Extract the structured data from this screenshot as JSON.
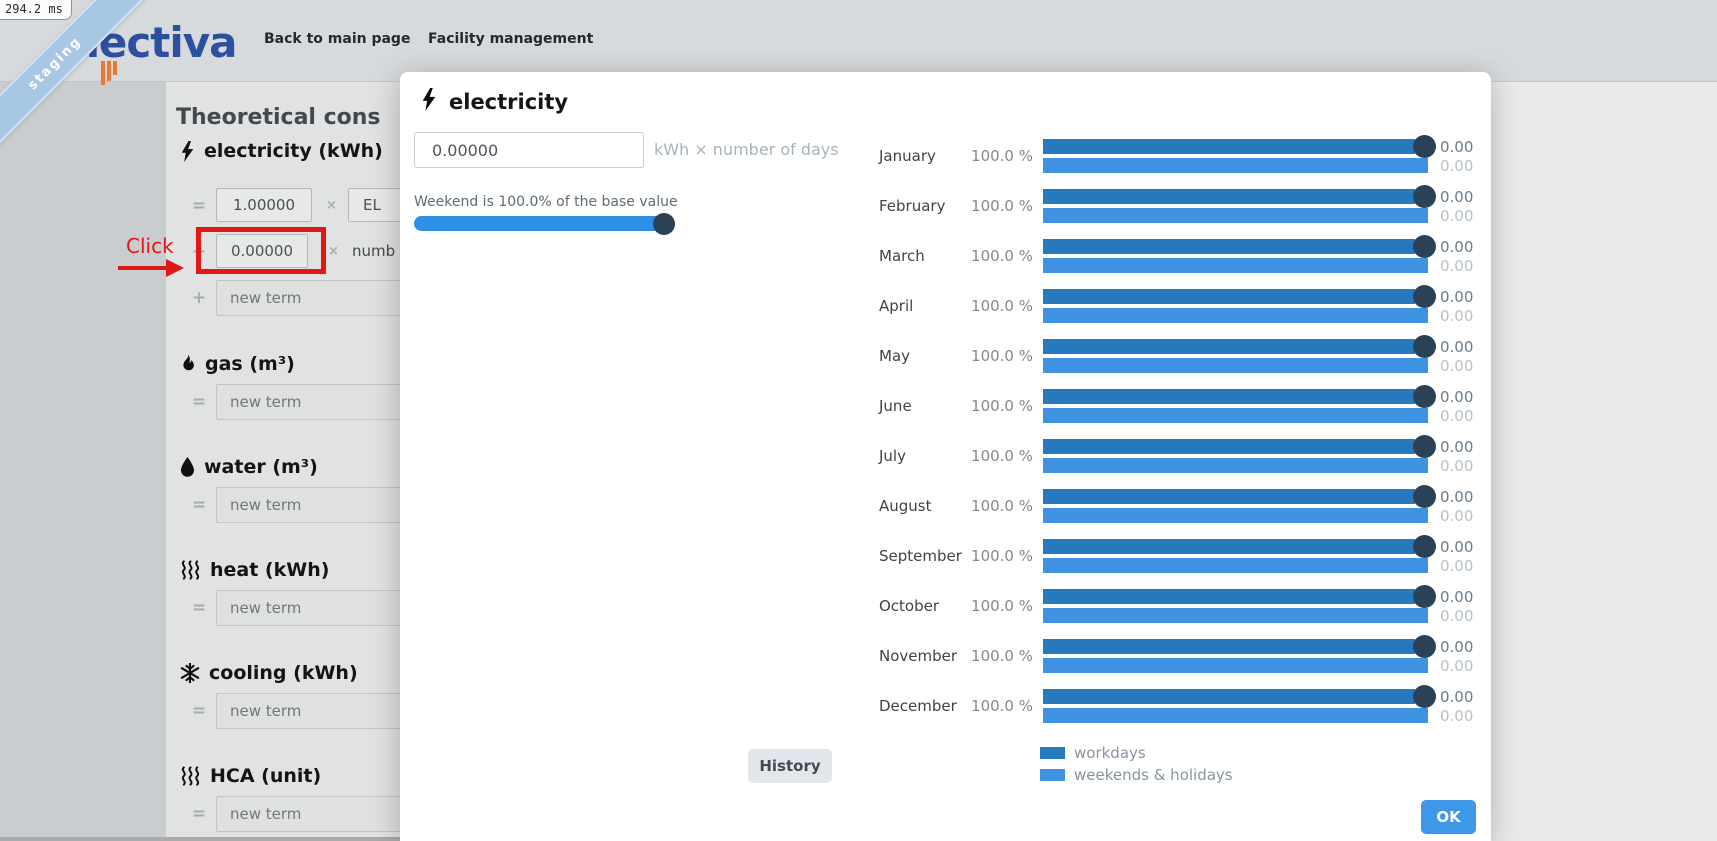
{
  "perf_badge": "294.2 ms",
  "ribbon_label": "staging",
  "brand": "nectiva",
  "nav": {
    "back_link": "Back to main page",
    "facility_link": "Facility management"
  },
  "annotation": {
    "label": "Click"
  },
  "page": {
    "title": "Theoretical cons",
    "electricity": {
      "icon": "bolt",
      "label": "electricity (kWh)",
      "rows": [
        {
          "op": "=",
          "value": "1.00000",
          "times": "×",
          "ref": "EL"
        },
        {
          "op": "+",
          "value": "0.00000",
          "times": "×",
          "ref": "numb"
        }
      ],
      "new_term": {
        "op": "+",
        "placeholder": "new term"
      }
    },
    "sections": [
      {
        "icon": "flame",
        "label": "gas (m³)",
        "op": "=",
        "new_term": "new term"
      },
      {
        "icon": "droplet",
        "label": "water (m³)",
        "op": "=",
        "new_term": "new term"
      },
      {
        "icon": "steam",
        "label": "heat (kWh)",
        "op": "=",
        "new_term": "new term"
      },
      {
        "icon": "snowflake",
        "label": "cooling (kWh)",
        "op": "=",
        "new_term": "new term"
      },
      {
        "icon": "steam",
        "label": "HCA (unit)",
        "op": "=",
        "new_term": "new term"
      }
    ]
  },
  "modal": {
    "icon": "bolt",
    "title": "electricity",
    "base_value": "0.00000",
    "unit_hint": "kWh × number of days",
    "weekend_label": "Weekend is 100.0% of the base value",
    "weekend_percent": 100,
    "months": [
      {
        "label": "January",
        "percent": "100.0 %",
        "workdays": "0.00",
        "weekends": "0.00"
      },
      {
        "label": "February",
        "percent": "100.0 %",
        "workdays": "0.00",
        "weekends": "0.00"
      },
      {
        "label": "March",
        "percent": "100.0 %",
        "workdays": "0.00",
        "weekends": "0.00"
      },
      {
        "label": "April",
        "percent": "100.0 %",
        "workdays": "0.00",
        "weekends": "0.00"
      },
      {
        "label": "May",
        "percent": "100.0 %",
        "workdays": "0.00",
        "weekends": "0.00"
      },
      {
        "label": "June",
        "percent": "100.0 %",
        "workdays": "0.00",
        "weekends": "0.00"
      },
      {
        "label": "July",
        "percent": "100.0 %",
        "workdays": "0.00",
        "weekends": "0.00"
      },
      {
        "label": "August",
        "percent": "100.0 %",
        "workdays": "0.00",
        "weekends": "0.00"
      },
      {
        "label": "September",
        "percent": "100.0 %",
        "workdays": "0.00",
        "weekends": "0.00"
      },
      {
        "label": "October",
        "percent": "100.0 %",
        "workdays": "0.00",
        "weekends": "0.00"
      },
      {
        "label": "November",
        "percent": "100.0 %",
        "workdays": "0.00",
        "weekends": "0.00"
      },
      {
        "label": "December",
        "percent": "100.0 %",
        "workdays": "0.00",
        "weekends": "0.00"
      }
    ],
    "legend": [
      {
        "key": "workdays",
        "label": "workdays"
      },
      {
        "key": "weekends",
        "label": "weekends & holidays"
      }
    ],
    "history_button": "History",
    "ok_button": "OK"
  },
  "colors": {
    "workdays_bar": "#2779bd",
    "weekends_bar": "#3e92e0",
    "slider_track": "#2e90e5",
    "knob": "#2b4156",
    "ok_button": "#3f97e8",
    "annotation_red": "#e41717",
    "brand_blue": "#2d4fa0",
    "brand_orange": "#e8792e",
    "ribbon_blue": "#a8c7e5"
  }
}
